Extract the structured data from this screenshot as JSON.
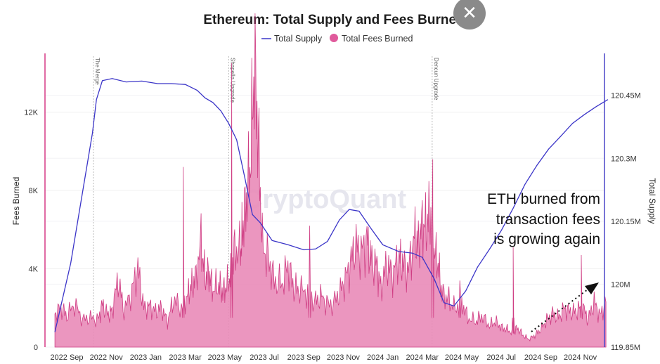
{
  "close_button": {
    "symbol": "✕",
    "icon": "close-icon"
  },
  "watermark": "CryptoQuant",
  "annotation": [
    "ETH burned from",
    "transaction fees",
    "is growing again"
  ],
  "chart_data": {
    "type": "line+area",
    "title": "Ethereum: Total Supply and Fees Burned",
    "legend": {
      "placement": "top-center"
    },
    "x_ticks": [
      "2022 Sep",
      "2022 Nov",
      "2023 Jan",
      "2023 Mar",
      "2023 May",
      "2023 Jul",
      "2023 Sep",
      "2023 Nov",
      "2024 Jan",
      "2024 Mar",
      "2024 May",
      "2024 Jul",
      "2024 Sep",
      "2024 Nov"
    ],
    "y_left": {
      "label": "Fees Burned",
      "range": [
        0,
        15000
      ],
      "ticks": [
        {
          "v": 0,
          "t": "0"
        },
        {
          "v": 4000,
          "t": "4K"
        },
        {
          "v": 8000,
          "t": "8K"
        },
        {
          "v": 12000,
          "t": "12K"
        }
      ]
    },
    "y_right": {
      "label": "Total Supply",
      "range": [
        119.85,
        120.55
      ],
      "ticks": [
        {
          "v": 119.85,
          "t": "119.85M"
        },
        {
          "v": 120.0,
          "t": "120M"
        },
        {
          "v": 120.15,
          "t": "120.15M"
        },
        {
          "v": 120.3,
          "t": "120.3M"
        },
        {
          "v": 120.45,
          "t": "120.45M"
        }
      ]
    },
    "grid": true,
    "events": [
      {
        "label": "The Merge",
        "x": 1.35
      },
      {
        "label": "Shapella Upgrade",
        "x": 8.2
      },
      {
        "label": "Dencun Upgrade",
        "x": 18.5
      }
    ],
    "colors": {
      "supply": "#3b35c8",
      "fees_fill": "#e98bb8",
      "fees_line": "#cf3d83",
      "left_axis": "#d63a86",
      "right_axis": "#4b47c9"
    },
    "series": [
      {
        "name": "Total Supply",
        "kind": "line",
        "axis": "right",
        "points": [
          [
            -0.6,
            119.886
          ],
          [
            0.2,
            120.05
          ],
          [
            0.8,
            120.22
          ],
          [
            1.3,
            120.36
          ],
          [
            1.5,
            120.44
          ],
          [
            1.8,
            120.485
          ],
          [
            2.3,
            120.49
          ],
          [
            3.0,
            120.482
          ],
          [
            3.8,
            120.484
          ],
          [
            4.6,
            120.478
          ],
          [
            5.3,
            120.478
          ],
          [
            6.0,
            120.476
          ],
          [
            6.6,
            120.462
          ],
          [
            7.0,
            120.444
          ],
          [
            7.4,
            120.433
          ],
          [
            7.8,
            120.413
          ],
          [
            8.2,
            120.383
          ],
          [
            8.6,
            120.344
          ],
          [
            9.0,
            120.257
          ],
          [
            9.4,
            120.166
          ],
          [
            9.8,
            120.146
          ],
          [
            10.4,
            120.104
          ],
          [
            11.2,
            120.094
          ],
          [
            12.0,
            120.082
          ],
          [
            12.6,
            120.084
          ],
          [
            13.2,
            120.102
          ],
          [
            13.8,
            120.153
          ],
          [
            14.3,
            120.178
          ],
          [
            14.8,
            120.174
          ],
          [
            15.4,
            120.133
          ],
          [
            16.0,
            120.094
          ],
          [
            16.8,
            120.078
          ],
          [
            17.5,
            120.074
          ],
          [
            18.0,
            120.064
          ],
          [
            18.6,
            120.013
          ],
          [
            19.1,
            119.956
          ],
          [
            19.6,
            119.948
          ],
          [
            20.2,
            119.984
          ],
          [
            20.8,
            120.041
          ],
          [
            21.4,
            120.083
          ],
          [
            22.0,
            120.128
          ],
          [
            22.6,
            120.181
          ],
          [
            23.2,
            120.238
          ],
          [
            23.8,
            120.283
          ],
          [
            24.4,
            120.322
          ],
          [
            25.0,
            120.352
          ],
          [
            25.6,
            120.383
          ],
          [
            26.2,
            120.404
          ],
          [
            26.8,
            120.423
          ],
          [
            27.4,
            120.44
          ]
        ]
      },
      {
        "name": "Total Fees Burned",
        "kind": "area",
        "axis": "left",
        "points": [
          [
            -0.6,
            1700
          ],
          [
            -0.3,
            2000
          ],
          [
            0.0,
            1600
          ],
          [
            0.4,
            2200
          ],
          [
            0.8,
            1400
          ],
          [
            1.2,
            1500
          ],
          [
            1.6,
            1400
          ],
          [
            1.8,
            2200
          ],
          [
            2.1,
            1600
          ],
          [
            2.3,
            1900
          ],
          [
            2.6,
            3500
          ],
          [
            2.9,
            1800
          ],
          [
            3.3,
            2900
          ],
          [
            3.6,
            4000
          ],
          [
            3.9,
            2000
          ],
          [
            4.2,
            2100
          ],
          [
            4.5,
            1800
          ],
          [
            4.8,
            2000
          ],
          [
            5.1,
            1300
          ],
          [
            5.4,
            2400
          ],
          [
            5.8,
            2000
          ],
          [
            6.1,
            2600
          ],
          [
            6.3,
            3100
          ],
          [
            6.5,
            3400
          ],
          [
            6.8,
            5400
          ],
          [
            7.0,
            3500
          ],
          [
            7.2,
            3800
          ],
          [
            7.4,
            2900
          ],
          [
            7.7,
            3200
          ],
          [
            7.9,
            2800
          ],
          [
            8.1,
            3100
          ],
          [
            8.3,
            3700
          ],
          [
            8.5,
            5000
          ],
          [
            8.8,
            4900
          ],
          [
            8.9,
            6000
          ],
          [
            9.1,
            7500
          ],
          [
            9.3,
            9500
          ],
          [
            9.5,
            14500
          ],
          [
            9.7,
            10500
          ],
          [
            9.9,
            5200
          ],
          [
            10.2,
            4500
          ],
          [
            10.5,
            3400
          ],
          [
            10.9,
            3200
          ],
          [
            11.2,
            4200
          ],
          [
            11.5,
            3000
          ],
          [
            11.8,
            2900
          ],
          [
            12.2,
            2800
          ],
          [
            12.6,
            2300
          ],
          [
            12.9,
            2600
          ],
          [
            13.3,
            2100
          ],
          [
            13.7,
            2500
          ],
          [
            14.0,
            3200
          ],
          [
            14.3,
            4000
          ],
          [
            14.6,
            5200
          ],
          [
            14.9,
            4800
          ],
          [
            15.2,
            5500
          ],
          [
            15.4,
            4400
          ],
          [
            15.7,
            4200
          ],
          [
            15.9,
            3000
          ],
          [
            16.2,
            4200
          ],
          [
            16.5,
            3700
          ],
          [
            16.8,
            4600
          ],
          [
            17.0,
            4200
          ],
          [
            17.3,
            3900
          ],
          [
            17.6,
            5700
          ],
          [
            17.8,
            5200
          ],
          [
            18.0,
            6300
          ],
          [
            18.2,
            6100
          ],
          [
            18.4,
            6900
          ],
          [
            18.6,
            4900
          ],
          [
            18.8,
            4200
          ],
          [
            19.0,
            2700
          ],
          [
            19.3,
            2500
          ],
          [
            19.6,
            2000
          ],
          [
            20.0,
            2300
          ],
          [
            20.3,
            1500
          ],
          [
            20.7,
            1300
          ],
          [
            21.0,
            1600
          ],
          [
            21.4,
            1100
          ],
          [
            21.7,
            1300
          ],
          [
            22.0,
            1000
          ],
          [
            22.3,
            900
          ],
          [
            22.6,
            700
          ],
          [
            22.8,
            1000
          ],
          [
            23.1,
            600
          ],
          [
            23.4,
            400
          ],
          [
            23.7,
            600
          ],
          [
            24.0,
            900
          ],
          [
            24.3,
            1400
          ],
          [
            24.6,
            1700
          ],
          [
            24.9,
            1500
          ],
          [
            25.2,
            2000
          ],
          [
            25.5,
            1800
          ],
          [
            25.8,
            1800
          ],
          [
            26.1,
            2100
          ],
          [
            26.4,
            1400
          ],
          [
            26.7,
            2300
          ],
          [
            27.0,
            1600
          ],
          [
            27.3,
            2300
          ]
        ]
      }
    ],
    "spikes": [
      [
        5.9,
        9200
      ],
      [
        8.35,
        14500
      ],
      [
        12.3,
        6200
      ],
      [
        18.53,
        9600
      ],
      [
        19.9,
        3400
      ],
      [
        22.6,
        5100
      ],
      [
        26.05,
        4700
      ]
    ]
  }
}
